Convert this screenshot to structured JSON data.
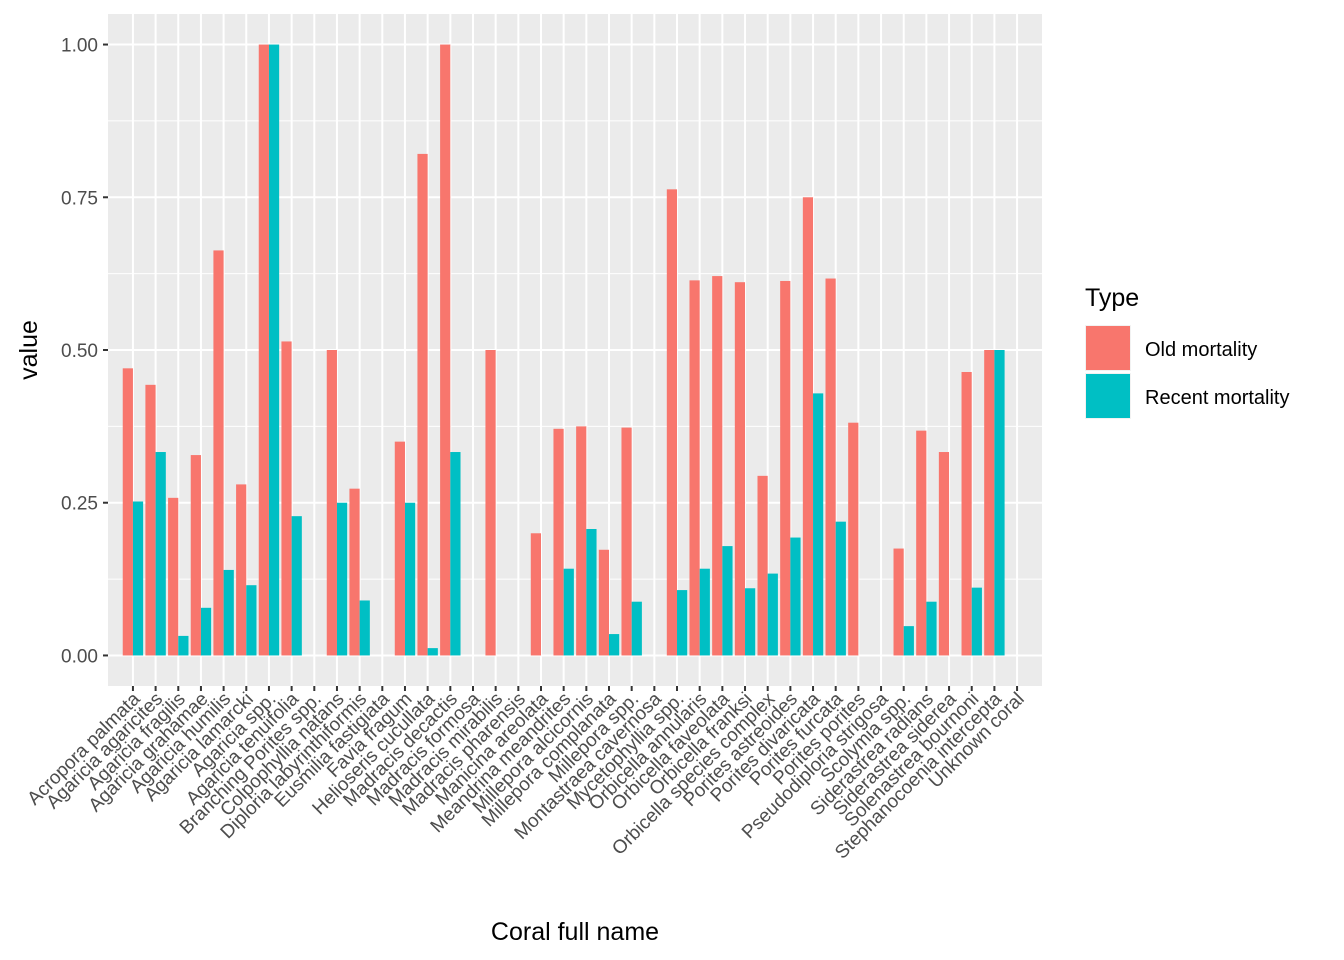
{
  "chart_data": {
    "type": "bar",
    "xlabel": "Coral full name",
    "ylabel": "value",
    "ylim": [
      -0.05,
      1.05
    ],
    "y_ticks": [
      0.0,
      0.25,
      0.5,
      0.75,
      1.0
    ],
    "y_tick_labels": [
      "0.00",
      "0.25",
      "0.50",
      "0.75",
      "1.00"
    ],
    "grid": true,
    "legend_position": "right",
    "legend_title": "Type",
    "categories": [
      "Acropora palmata",
      "Agaricia agaricites",
      "Agaricia fragilis",
      "Agaricia grahamae",
      "Agaricia humilis",
      "Agaricia lamarcki",
      "Agaricia spp.",
      "Agaricia tenuifolia",
      "Branching Porites spp.",
      "Colpophyllia natans",
      "Diploria labyrinthiformis",
      "Eusmilia fastigiata",
      "Favia fragum",
      "Helioseris cucullata",
      "Madracis decactis",
      "Madracis formosa",
      "Madracis mirabilis",
      "Madracis pharensis",
      "Manicina areolata",
      "Meandrina meandrites",
      "Millepora alcicornis",
      "Millepora complanata",
      "Millepora spp.",
      "Montastraea cavernosa",
      "Mycetophyllia spp.",
      "Orbicella annularis",
      "Orbicella faveolata",
      "Orbicella franksi",
      "Orbicella species complex",
      "Porites astreoides",
      "Porites divaricata",
      "Porites furcata",
      "Porites porites",
      "Pseudodiploria strigosa",
      "Scolymia spp.",
      "Siderastrea radians",
      "Siderastrea siderea",
      "Solenastrea bournoni",
      "Stephanocoenia intercepta",
      "Unknown coral"
    ],
    "series": [
      {
        "name": "Old mortality",
        "color": "#F8766D",
        "values": [
          0.47,
          0.443,
          0.258,
          0.328,
          0.663,
          0.28,
          1.0,
          0.514,
          null,
          0.5,
          0.273,
          null,
          0.35,
          0.821,
          1.0,
          null,
          0.5,
          null,
          0.2,
          0.371,
          0.375,
          0.173,
          0.373,
          null,
          0.763,
          0.614,
          0.621,
          0.611,
          0.294,
          0.613,
          0.75,
          0.617,
          0.381,
          null,
          0.175,
          0.368,
          0.333,
          0.464,
          0.5,
          null
        ]
      },
      {
        "name": "Recent mortality",
        "color": "#00BFC4",
        "values": [
          0.252,
          0.333,
          0.032,
          0.078,
          0.14,
          0.115,
          1.0,
          0.228,
          null,
          0.25,
          0.09,
          null,
          0.25,
          0.012,
          0.333,
          null,
          null,
          null,
          null,
          0.142,
          0.207,
          0.035,
          0.088,
          null,
          0.107,
          0.142,
          0.179,
          0.11,
          0.134,
          0.193,
          0.429,
          0.219,
          null,
          null,
          0.048,
          0.088,
          null,
          0.111,
          0.5,
          null
        ]
      }
    ]
  }
}
